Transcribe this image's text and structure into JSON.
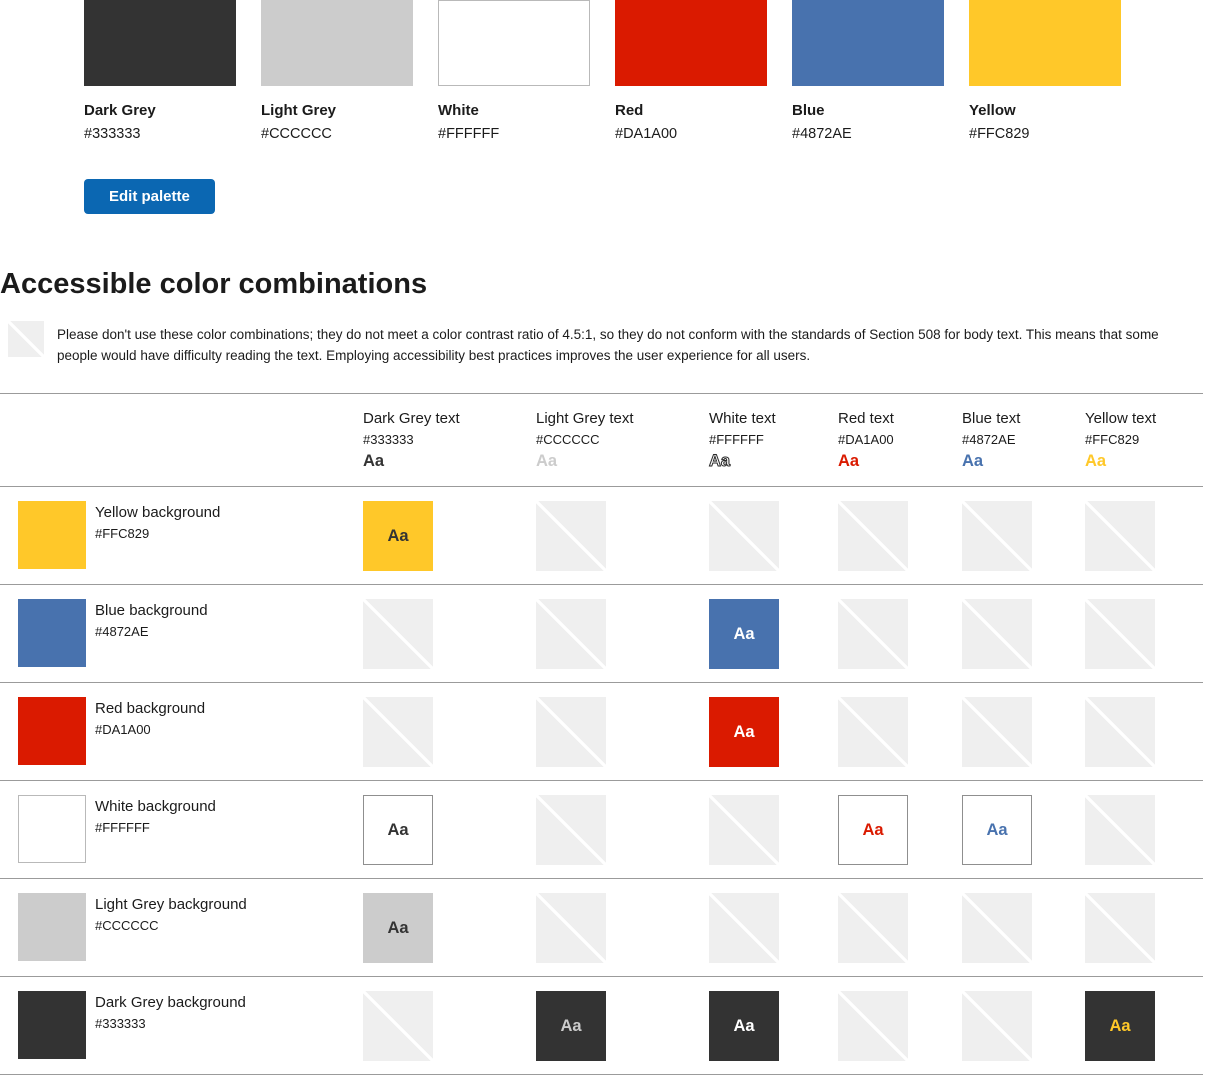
{
  "palette": {
    "swatches": [
      {
        "name": "Dark Grey",
        "hex": "#333333"
      },
      {
        "name": "Light Grey",
        "hex": "#CCCCCC"
      },
      {
        "name": "White",
        "hex": "#FFFFFF"
      },
      {
        "name": "Red",
        "hex": "#DA1A00"
      },
      {
        "name": "Blue",
        "hex": "#4872AE"
      },
      {
        "name": "Yellow",
        "hex": "#FFC829"
      }
    ],
    "edit_button_label": "Edit palette"
  },
  "accessible_section": {
    "heading": "Accessible color combinations",
    "note": "Please don't use these color combinations; they do not meet a color contrast ratio of 4.5:1, so they do not conform with the standards of Section 508 for body text. This means that some people would have difficulty reading the text. Employing accessibility best practices improves the user experience for all users.",
    "sample_text": "Aa"
  },
  "combinations_table": {
    "columns": [
      {
        "label": "Dark Grey text",
        "hex": "#333333"
      },
      {
        "label": "Light Grey text",
        "hex": "#CCCCCC"
      },
      {
        "label": "White text",
        "hex": "#FFFFFF"
      },
      {
        "label": "Red text",
        "hex": "#DA1A00"
      },
      {
        "label": "Blue text",
        "hex": "#4872AE"
      },
      {
        "label": "Yellow text",
        "hex": "#FFC829"
      }
    ],
    "rows": [
      {
        "label": "Yellow background",
        "hex": "#FFC829",
        "accessible": [
          true,
          false,
          false,
          false,
          false,
          false
        ]
      },
      {
        "label": "Blue background",
        "hex": "#4872AE",
        "accessible": [
          false,
          false,
          true,
          false,
          false,
          false
        ]
      },
      {
        "label": "Red background",
        "hex": "#DA1A00",
        "accessible": [
          false,
          false,
          true,
          false,
          false,
          false
        ]
      },
      {
        "label": "White background",
        "hex": "#FFFFFF",
        "accessible": [
          true,
          false,
          false,
          true,
          true,
          false
        ]
      },
      {
        "label": "Light Grey background",
        "hex": "#CCCCCC",
        "accessible": [
          true,
          false,
          false,
          false,
          false,
          false
        ]
      },
      {
        "label": "Dark Grey background",
        "hex": "#333333",
        "accessible": [
          false,
          true,
          true,
          false,
          false,
          true
        ]
      }
    ]
  },
  "colors": {
    "button_blue": "#0B67B2",
    "striped_cell_bg": "#EFEFEF",
    "divider_grey": "#9B9B9B"
  }
}
